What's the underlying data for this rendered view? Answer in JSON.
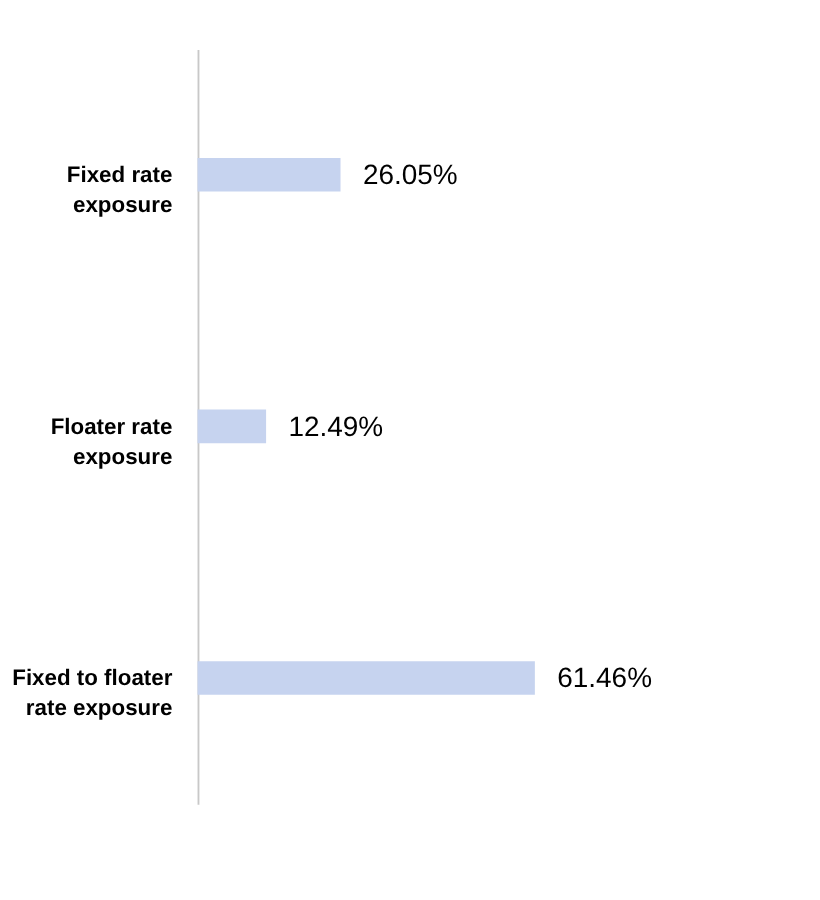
{
  "chart_data": {
    "type": "bar",
    "orientation": "horizontal",
    "categories": [
      "Fixed rate exposure",
      "Floater rate exposure",
      "Fixed to floater rate exposure"
    ],
    "values": [
      26.05,
      12.49,
      61.46
    ],
    "color": "#c6d3ef",
    "value_labels": [
      "26.05%",
      "12.49%",
      "61.46%"
    ],
    "grid": false
  }
}
